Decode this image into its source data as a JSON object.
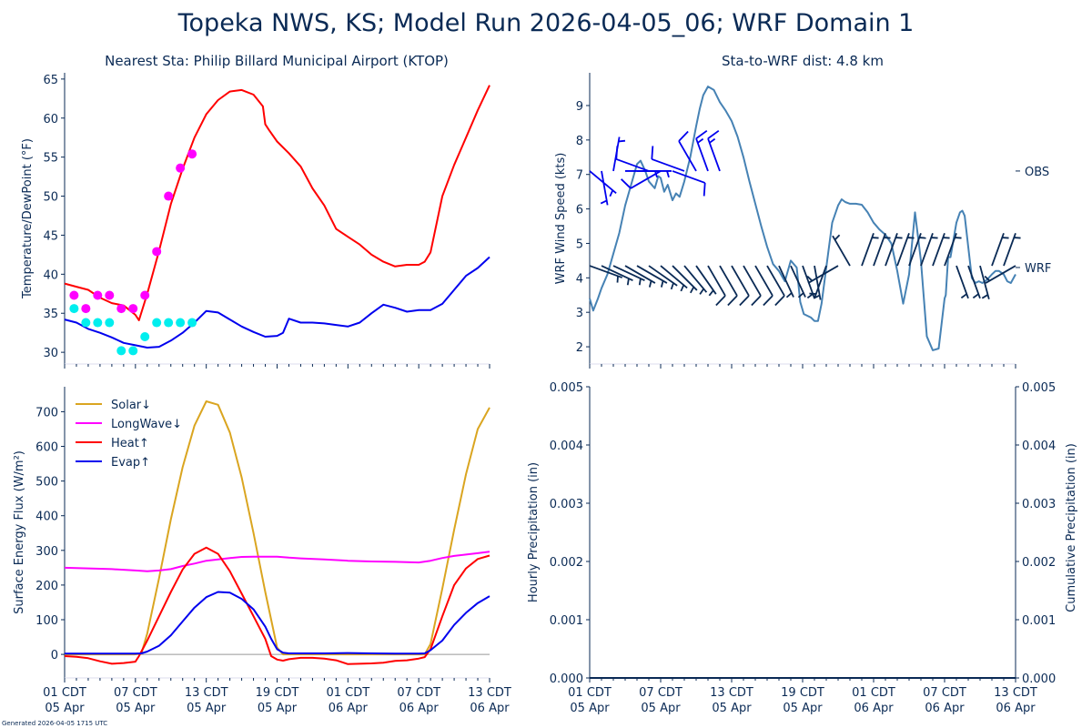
{
  "title": "Topeka NWS, KS; Model Run 2026-04-05_06; WRF Domain 1",
  "footer": "Generated 2026-04-05 1715 UTC",
  "x_ticks": [
    {
      "hour": 0,
      "line1": "01 CDT",
      "line2": "05 Apr"
    },
    {
      "hour": 6,
      "line1": "07 CDT",
      "line2": "05 Apr"
    },
    {
      "hour": 12,
      "line1": "13 CDT",
      "line2": "05 Apr"
    },
    {
      "hour": 18,
      "line1": "19 CDT",
      "line2": "05 Apr"
    },
    {
      "hour": 24,
      "line1": "01 CDT",
      "line2": "06 Apr"
    },
    {
      "hour": 30,
      "line1": "07 CDT",
      "line2": "06 Apr"
    },
    {
      "hour": 36,
      "line1": "13 CDT",
      "line2": "06 Apr"
    }
  ],
  "chart_data": [
    {
      "id": "temp",
      "type": "line",
      "title": "Nearest Sta: Philip Billard Municipal Airport (KTOP)",
      "xlabel": "",
      "ylabel": "Temperature/DewPoint (°F)",
      "xlim": [
        0,
        36
      ],
      "ylim": [
        28.5,
        65.8
      ],
      "yticks": [
        30,
        35,
        40,
        45,
        50,
        55,
        60,
        65
      ],
      "series": [
        {
          "name": "WRF Temperature",
          "color": "#ff0000",
          "x": [
            0,
            1,
            2,
            3,
            4,
            5,
            6,
            6.3,
            7,
            8,
            9,
            10,
            11,
            12,
            13,
            14,
            15,
            16,
            16.8,
            17,
            17.3,
            18,
            19,
            20,
            21,
            22,
            23,
            24,
            25,
            26,
            27,
            28,
            29,
            30,
            30.5,
            31,
            32,
            33,
            34,
            35,
            36
          ],
          "y": [
            38.8,
            38.4,
            38.0,
            37.0,
            36.3,
            36.0,
            34.8,
            34.1,
            37.5,
            43,
            49,
            53.5,
            57.5,
            60.5,
            62.3,
            63.4,
            63.6,
            63.0,
            61.5,
            59.2,
            58.5,
            57.0,
            55.5,
            53.8,
            51.0,
            48.8,
            45.8,
            44.8,
            43.8,
            42.5,
            41.6,
            41.0,
            41.2,
            41.2,
            41.6,
            42.8,
            50,
            54,
            57.5,
            61,
            64.2
          ]
        },
        {
          "name": "WRF DewPoint",
          "color": "#0000ee",
          "x": [
            0,
            1,
            2,
            3,
            4,
            5,
            6,
            7,
            8,
            9,
            10,
            11,
            12,
            13,
            14,
            15,
            16,
            17,
            18,
            18.5,
            19,
            20,
            21,
            22,
            23,
            24,
            25,
            26,
            27,
            28,
            29,
            30,
            31,
            32,
            33,
            34,
            35,
            36
          ],
          "y": [
            34.2,
            33.8,
            33.0,
            32.5,
            31.9,
            31.2,
            30.9,
            30.6,
            30.7,
            31.5,
            32.5,
            33.8,
            35.3,
            35.1,
            34.2,
            33.3,
            32.6,
            32.0,
            32.1,
            32.5,
            34.3,
            33.8,
            33.8,
            33.7,
            33.5,
            33.3,
            33.8,
            35.0,
            36.1,
            35.7,
            35.2,
            35.4,
            35.4,
            36.2,
            38,
            39.8,
            40.8,
            42.2
          ]
        },
        {
          "name": "OBS Temperature",
          "color": "#ff00ff",
          "markers": true,
          "x": [
            0.8,
            1.8,
            2.8,
            3.8,
            4.8,
            5.8,
            6.8,
            7.8,
            8.8,
            9.8,
            10.8
          ],
          "y": [
            37.3,
            35.6,
            37.3,
            37.3,
            35.6,
            35.6,
            37.3,
            42.9,
            50.0,
            53.6,
            55.4
          ]
        },
        {
          "name": "OBS DewPoint",
          "color": "#00eeee",
          "markers": true,
          "x": [
            0.8,
            1.8,
            2.8,
            3.8,
            4.8,
            5.8,
            6.8,
            7.8,
            8.8,
            9.8,
            10.8
          ],
          "y": [
            35.6,
            33.8,
            33.8,
            33.8,
            30.2,
            30.2,
            32.0,
            33.8,
            33.8,
            33.8,
            33.8
          ]
        }
      ]
    },
    {
      "id": "wind",
      "type": "line",
      "title": "Sta-to-WRF dist: 4.8 km",
      "xlabel": "",
      "ylabel": "WRF Wind Speed (kts)",
      "xlim": [
        0,
        36
      ],
      "ylim": [
        1.5,
        9.95
      ],
      "yticks": [
        2,
        3,
        4,
        5,
        6,
        7,
        8,
        9
      ],
      "right_labels": [
        {
          "label": "OBS",
          "y": 7.1
        },
        {
          "label": "WRF",
          "y": 4.3
        }
      ],
      "series": [
        {
          "name": "WRF Wind Speed",
          "color": "#4682b4",
          "x": [
            0,
            0.3,
            0.7,
            1,
            1.5,
            2,
            2.5,
            3,
            3.5,
            4,
            4.3,
            4.7,
            5,
            5.5,
            5.8,
            6,
            6.3,
            6.6,
            7,
            7.3,
            7.6,
            8,
            8.5,
            9,
            9.3,
            9.6,
            10,
            10.5,
            11,
            11.5,
            12,
            12.5,
            13,
            13.5,
            14,
            14.5,
            15,
            15.5,
            16,
            16.5,
            17,
            17.5,
            17.8,
            18.1,
            18.4,
            18.7,
            19,
            19.3,
            19.6,
            20,
            20.5,
            21,
            21.3,
            21.6,
            22,
            22.5,
            23,
            23.5,
            24,
            24.5,
            25,
            25.5,
            26,
            26.5,
            27,
            27.5,
            28,
            28.5,
            29,
            29.5,
            30,
            30.1,
            30.3,
            30.5,
            30.7,
            31,
            31.3,
            31.5,
            31.7,
            32,
            32.3,
            32.6,
            32.9,
            33.2,
            33.6,
            34,
            34.3,
            34.6,
            35,
            35.3,
            35.6,
            36
          ],
          "y": [
            3.4,
            3.05,
            3.4,
            3.7,
            4.1,
            4.7,
            5.3,
            6.1,
            6.7,
            7.3,
            7.4,
            7.1,
            6.8,
            6.6,
            6.95,
            6.9,
            6.5,
            6.7,
            6.25,
            6.45,
            6.35,
            6.8,
            7.5,
            8.4,
            8.9,
            9.3,
            9.55,
            9.45,
            9.1,
            8.85,
            8.55,
            8.1,
            7.5,
            6.8,
            6.15,
            5.5,
            4.9,
            4.4,
            4.2,
            3.9,
            4.5,
            4.3,
            3.3,
            2.95,
            2.9,
            2.85,
            2.75,
            2.75,
            3.25,
            4.3,
            5.6,
            6.1,
            6.28,
            6.2,
            6.15,
            6.15,
            6.12,
            5.9,
            5.6,
            5.4,
            5.25,
            5.0,
            4.2,
            3.25,
            4.1,
            5.9,
            4.5,
            2.3,
            1.9,
            1.95,
            3.4,
            3.5,
            4.6,
            4.6,
            5.0,
            5.6,
            5.9,
            5.95,
            5.8,
            4.9,
            4.0,
            3.85,
            3.9,
            3.85,
            3.95,
            4.1,
            4.2,
            4.2,
            4.1,
            3.9,
            3.85,
            4.1
          ]
        },
        {
          "name": "OBS Wind Barbs",
          "color": "#0000ee",
          "barbs": true,
          "base_y": 7.1,
          "x": [
            0,
            1,
            2,
            3,
            4,
            5,
            6,
            7,
            8,
            9,
            10,
            11
          ],
          "speed_kts": [
            5,
            5,
            5,
            5,
            5,
            10,
            10,
            10,
            10,
            10,
            15,
            15
          ],
          "dir_deg": [
            130,
            170,
            10,
            90,
            90,
            290,
            240,
            110,
            290,
            330,
            340,
            340
          ]
        },
        {
          "name": "WRF Wind Barbs",
          "color": "#0a2a55",
          "barbs": true,
          "base_y": 4.35,
          "x": [
            0,
            1,
            2,
            3,
            4,
            5,
            6,
            7,
            8,
            9,
            10,
            11,
            12,
            13,
            14,
            15,
            16,
            17,
            18,
            19,
            20,
            21,
            22,
            23,
            24,
            25,
            26,
            27,
            28,
            29,
            30,
            31,
            32,
            33,
            34,
            35,
            36
          ],
          "speed_kts": [
            5,
            5,
            5,
            5,
            5,
            5,
            5,
            5,
            5,
            5,
            10,
            10,
            10,
            10,
            10,
            10,
            5,
            5,
            5,
            5,
            5,
            5,
            5,
            5,
            5,
            5,
            5,
            5,
            5,
            5,
            5,
            5,
            5,
            5,
            5,
            5,
            5
          ],
          "dir_deg": [
            110,
            115,
            115,
            120,
            120,
            125,
            130,
            135,
            140,
            145,
            150,
            150,
            150,
            150,
            150,
            150,
            155,
            155,
            160,
            170,
            200,
            240,
            330,
            20,
            20,
            20,
            20,
            20,
            20,
            20,
            20,
            160,
            160,
            165,
            20,
            20,
            240
          ]
        }
      ]
    },
    {
      "id": "flux",
      "type": "line",
      "title": "",
      "xlabel": "",
      "ylabel": "Surface Energy Flux (W/m²)",
      "xlim": [
        0,
        36
      ],
      "ylim": [
        -68,
        772
      ],
      "yticks": [
        0,
        100,
        200,
        300,
        400,
        500,
        600,
        700
      ],
      "legend_position": "top-left",
      "series": [
        {
          "name": "Solar↓",
          "color": "#daa520",
          "x": [
            0,
            5.9,
            6.5,
            7,
            8,
            9,
            10,
            11,
            12,
            13,
            14,
            15,
            16,
            17,
            18,
            18.5,
            19,
            19.5,
            20,
            24,
            28,
            30,
            30.5,
            31,
            32,
            33,
            34,
            35,
            36
          ],
          "y": [
            0,
            0,
            2,
            60,
            220,
            390,
            540,
            660,
            730,
            720,
            640,
            510,
            350,
            180,
            20,
            0,
            0,
            0,
            0,
            0,
            0,
            0,
            0,
            30,
            190,
            360,
            520,
            650,
            712
          ]
        },
        {
          "name": "LongWave↓",
          "color": "#ff00ff",
          "x": [
            0,
            2,
            4,
            6,
            7,
            8,
            9,
            10,
            11,
            12,
            13,
            14,
            15,
            16,
            17,
            18,
            19,
            20,
            22,
            24,
            26,
            28,
            30,
            31,
            32,
            33,
            34,
            35,
            36
          ],
          "y": [
            250,
            248,
            246,
            242,
            240,
            242,
            246,
            255,
            262,
            270,
            274,
            278,
            281,
            282,
            282,
            282,
            279,
            277,
            274,
            270,
            268,
            267,
            265,
            270,
            278,
            284,
            288,
            292,
            296
          ]
        },
        {
          "name": "Heat↑",
          "color": "#ff0000",
          "x": [
            0,
            1,
            2,
            3,
            4,
            5,
            6,
            6.3,
            7,
            8,
            9,
            10,
            11,
            12,
            13,
            14,
            15,
            16,
            17,
            17.5,
            18,
            18.5,
            19,
            20,
            21,
            22,
            23,
            24,
            25,
            26,
            27,
            28,
            29,
            30,
            30.5,
            31,
            32,
            33,
            34,
            35,
            36
          ],
          "y": [
            -5,
            -7,
            -11,
            -20,
            -27,
            -25,
            -21,
            -5,
            40,
            110,
            180,
            245,
            290,
            308,
            290,
            240,
            175,
            110,
            45,
            -5,
            -15,
            -18,
            -14,
            -10,
            -10,
            -12,
            -17,
            -28,
            -27,
            -26,
            -24,
            -19,
            -17,
            -12,
            -8,
            15,
            110,
            200,
            248,
            275,
            285
          ]
        },
        {
          "name": "Evap↑",
          "color": "#0000ee",
          "x": [
            0,
            2,
            4,
            6,
            6.5,
            7,
            8,
            9,
            10,
            11,
            12,
            13,
            14,
            15,
            16,
            17,
            17.5,
            18,
            18.5,
            19,
            20,
            22,
            24,
            26,
            28,
            30,
            30.5,
            31,
            32,
            33,
            34,
            35,
            36
          ],
          "y": [
            2,
            2,
            2,
            2,
            3,
            8,
            25,
            55,
            95,
            135,
            165,
            180,
            178,
            160,
            130,
            80,
            45,
            15,
            5,
            3,
            3,
            3,
            4,
            3,
            2,
            2,
            3,
            12,
            40,
            85,
            120,
            148,
            168
          ]
        }
      ]
    },
    {
      "id": "precip",
      "type": "line",
      "title": "",
      "xlabel": "",
      "ylabel": "Hourly Precipitation (in)",
      "ylabel_right": "Cumulative Precipitation (in)",
      "xlim": [
        0,
        36
      ],
      "ylim": [
        0,
        0.005
      ],
      "yticks": [
        "0.000",
        "0.001",
        "0.002",
        "0.003",
        "0.004",
        "0.005"
      ],
      "series": [
        {
          "name": "Hourly Precipitation",
          "color": "#1a6b2a",
          "x": [
            0,
            36
          ],
          "y": [
            0,
            0
          ]
        },
        {
          "name": "Cumulative Precipitation",
          "color": "#0a2a55",
          "x": [
            0,
            36
          ],
          "y": [
            0,
            0
          ]
        }
      ]
    }
  ]
}
